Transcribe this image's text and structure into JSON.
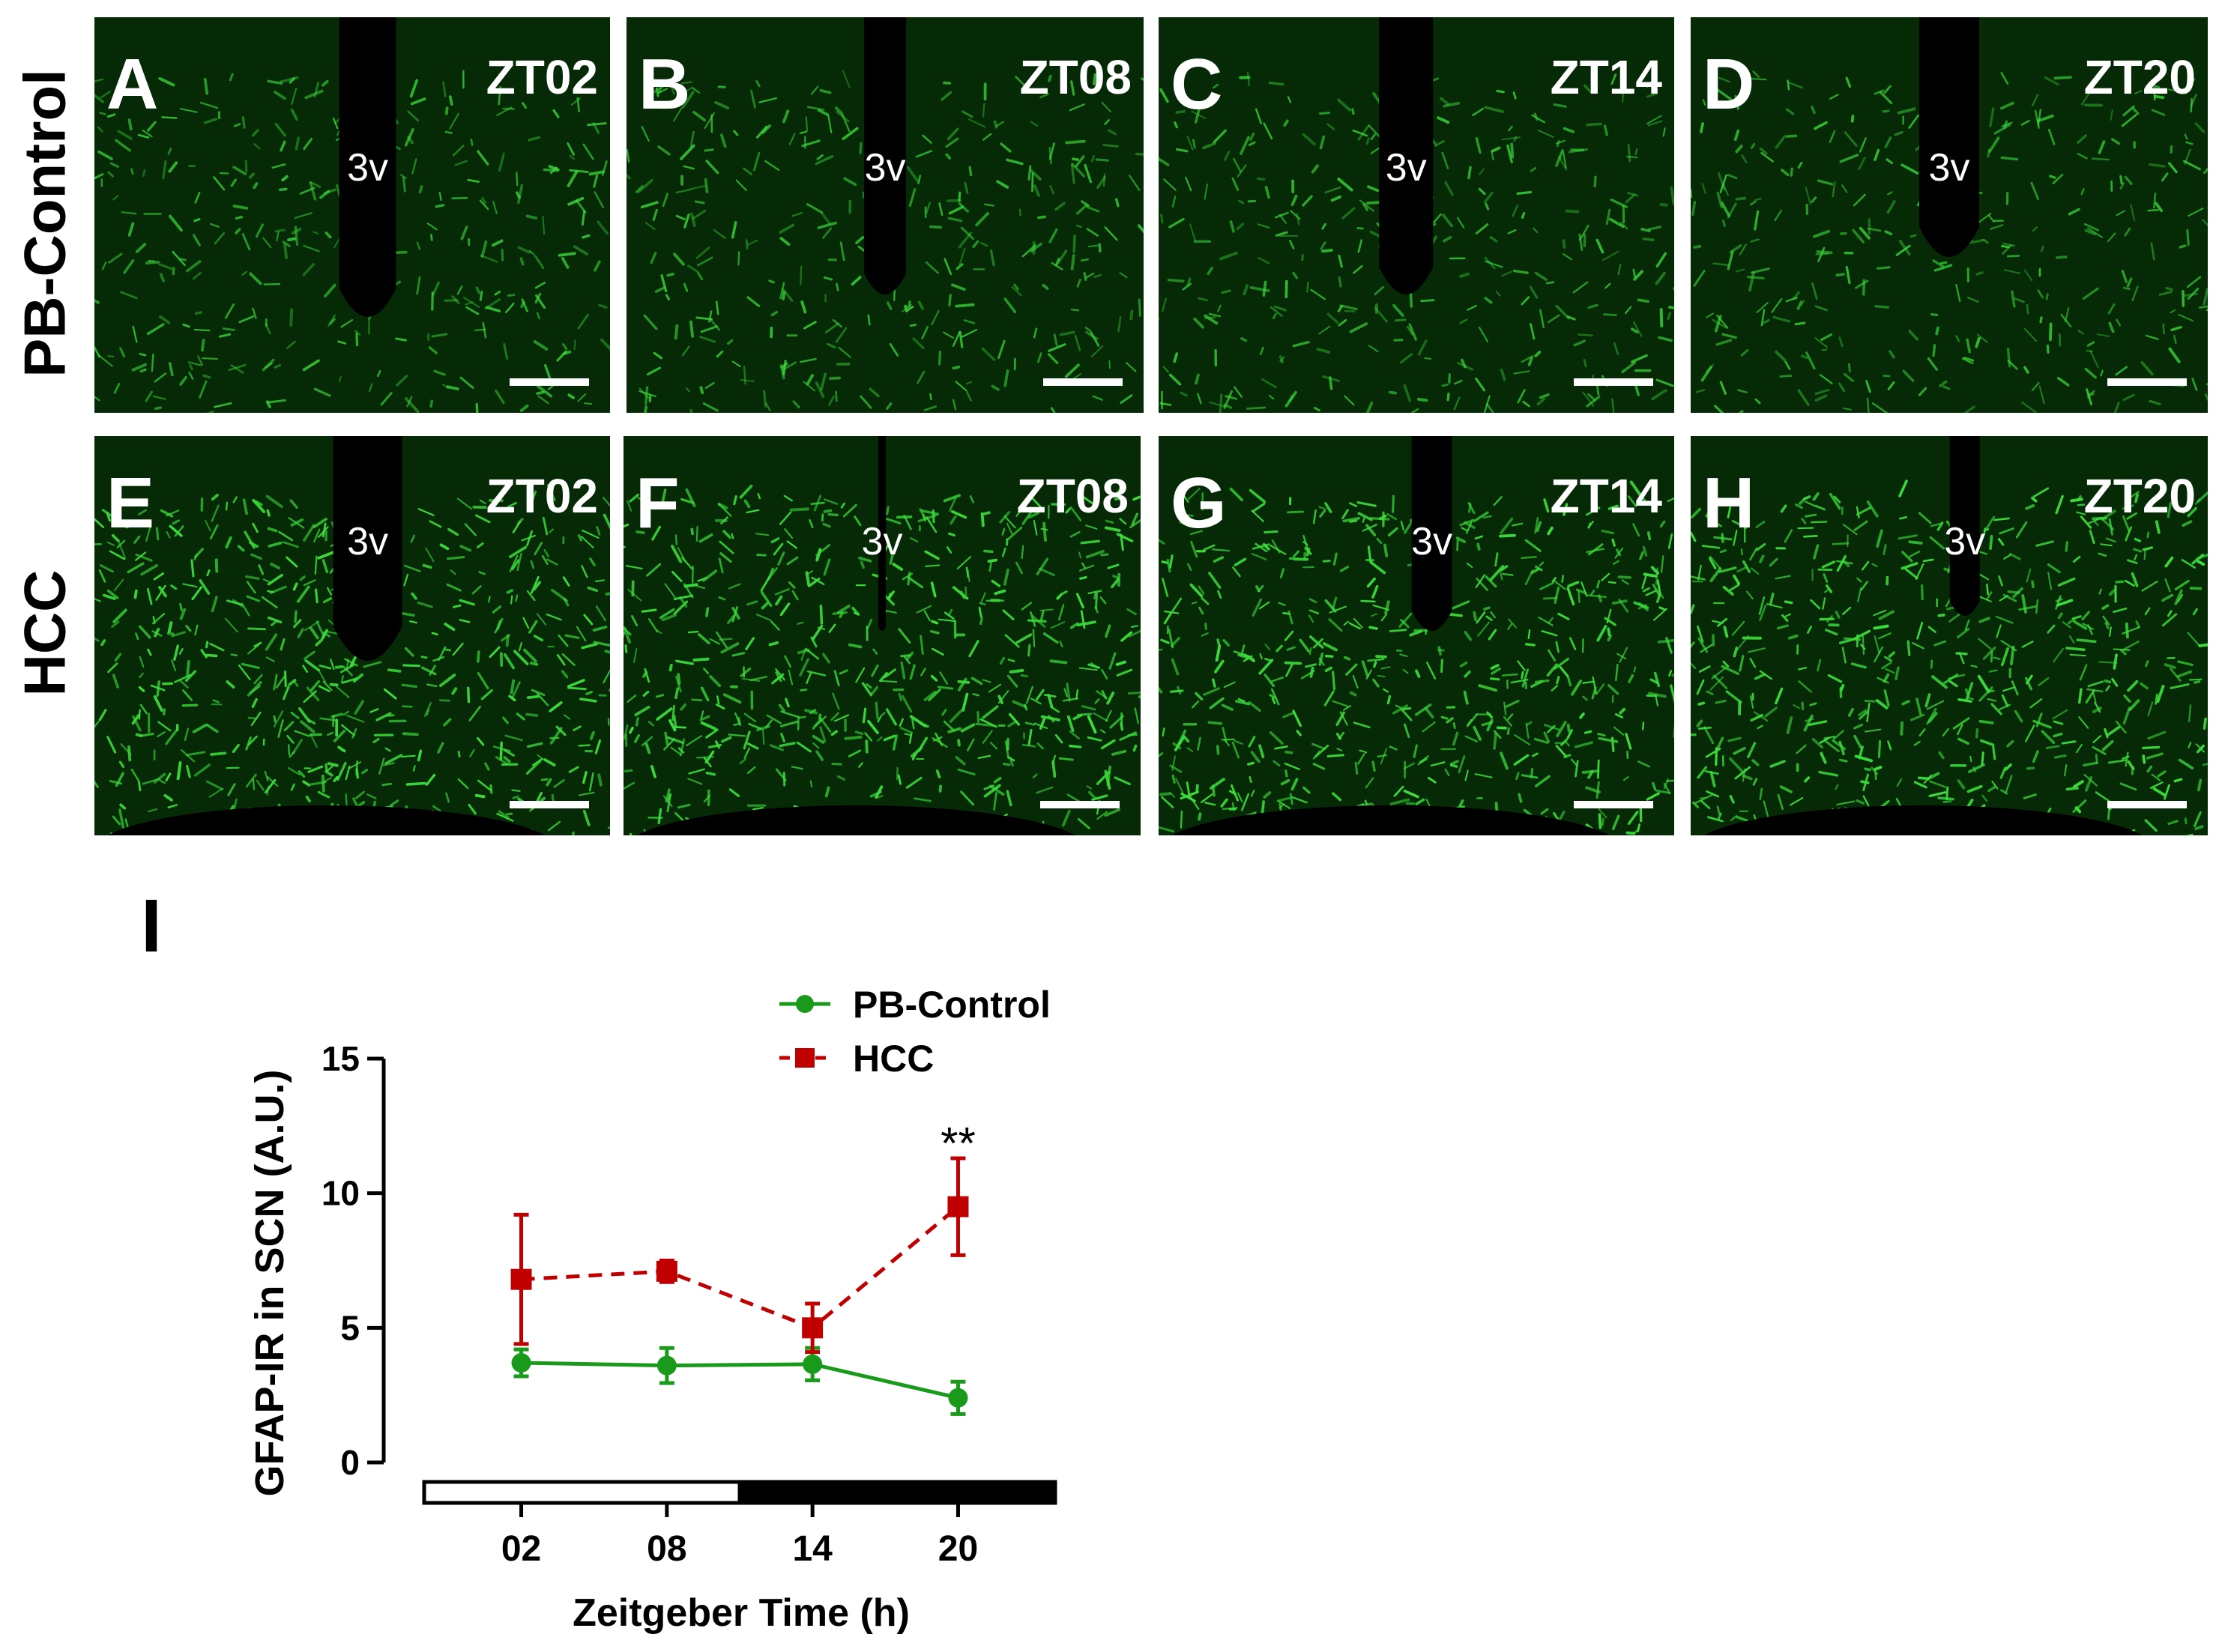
{
  "rows": [
    {
      "label": "PB-Control"
    },
    {
      "label": "HCC"
    }
  ],
  "panels": [
    {
      "letter": "A",
      "zt": "ZT02",
      "ventricle": "3v"
    },
    {
      "letter": "B",
      "zt": "ZT08",
      "ventricle": "3v"
    },
    {
      "letter": "C",
      "zt": "ZT14",
      "ventricle": "3v"
    },
    {
      "letter": "D",
      "zt": "ZT20",
      "ventricle": "3v"
    },
    {
      "letter": "E",
      "zt": "ZT02",
      "ventricle": "3v"
    },
    {
      "letter": "F",
      "zt": "ZT08",
      "ventricle": "3v"
    },
    {
      "letter": "G",
      "zt": "ZT14",
      "ventricle": "3v"
    },
    {
      "letter": "H",
      "zt": "ZT20",
      "ventricle": "3v"
    }
  ],
  "colors": {
    "pb_control": "#1a9a1a",
    "hcc": "#c00000",
    "stain": "#3ddc3d",
    "panel_background": "#062a06"
  },
  "chart_data": {
    "type": "line",
    "panel_letter": "I",
    "xlabel": "Zeitgeber Time (h)",
    "ylabel": "GFAP-IR in SCN (A.U.)",
    "categories": [
      "02",
      "08",
      "14",
      "20"
    ],
    "x": [
      2,
      8,
      14,
      20
    ],
    "xlim": [
      -2,
      24
    ],
    "ylim": [
      0,
      15
    ],
    "yticks": [
      0,
      5,
      10,
      15
    ],
    "grid": false,
    "legend_position": "top-right",
    "light_dark_bar": [
      {
        "phase": "light",
        "from": -2,
        "to": 11
      },
      {
        "phase": "dark",
        "from": 11,
        "to": 24
      }
    ],
    "series": [
      {
        "name": "PB-Control",
        "line_style": "solid",
        "marker": "circle",
        "values": [
          3.7,
          3.6,
          3.65,
          2.4
        ],
        "errors": [
          0.5,
          0.65,
          0.6,
          0.6
        ]
      },
      {
        "name": "HCC",
        "line_style": "dashed",
        "marker": "square",
        "values": [
          6.8,
          7.1,
          5.0,
          9.5
        ],
        "errors": [
          2.4,
          0.4,
          0.9,
          1.8
        ]
      }
    ],
    "annotations": [
      {
        "text": "**",
        "x": 20,
        "y": 11.9
      }
    ]
  }
}
